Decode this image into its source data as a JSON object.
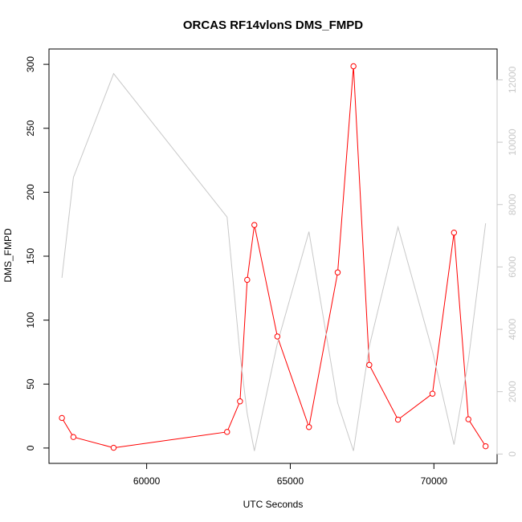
{
  "chart_data": {
    "type": "line",
    "title": "ORCAS RF14vlonS DMS_FMPD",
    "xlabel": "UTC Seconds",
    "ylabel": "DMS_FMPD",
    "y2label": "",
    "xlim": [
      56600,
      72200
    ],
    "ylim": [
      -12,
      312
    ],
    "y2lim": [
      -300,
      12990
    ],
    "x_ticks": [
      60000,
      65000,
      70000
    ],
    "y_ticks": [
      0,
      50,
      100,
      150,
      200,
      250,
      300
    ],
    "y2_ticks": [
      0,
      2000,
      4000,
      6000,
      8000,
      10000,
      12000
    ],
    "grid": false,
    "legend": "none",
    "colors": {
      "primary": "#ff0000",
      "secondary": "#c8c8c8",
      "axis": "#000000"
    },
    "series": [
      {
        "axis": "left",
        "style": "line+circle-markers",
        "color": "#ff0000",
        "x": [
          57050,
          57450,
          58850,
          62800,
          63250,
          63500,
          63750,
          64550,
          65650,
          66650,
          67200,
          67750,
          68750,
          69950,
          70700,
          71200,
          71800
        ],
        "values": [
          23.5,
          8.6,
          0.2,
          12.6,
          36.5,
          131.5,
          174.4,
          87.2,
          16.4,
          137.3,
          298.5,
          65.0,
          22.2,
          42.5,
          168.4,
          22.5,
          1.4
        ]
      },
      {
        "axis": "right",
        "style": "line",
        "color": "#c8c8c8",
        "x": [
          57050,
          57450,
          58850,
          62800,
          63250,
          63500,
          63750,
          64550,
          65650,
          66650,
          67200,
          67750,
          68750,
          69950,
          70700,
          71200,
          71800
        ],
        "values": [
          5650,
          8870,
          12200,
          7600,
          3200,
          1300,
          100,
          3550,
          7130,
          1640,
          100,
          3450,
          7280,
          3300,
          300,
          3000,
          7400
        ]
      }
    ]
  }
}
